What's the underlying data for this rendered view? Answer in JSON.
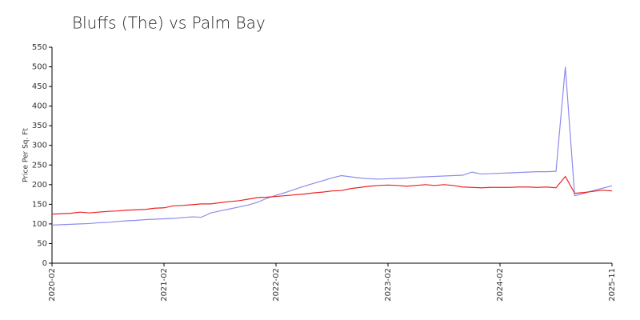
{
  "chart_data": {
    "type": "line",
    "title": "Bluffs (The) vs Palm Bay",
    "y_label": "Price Per Sq. Ft",
    "categories": [
      "2020-02",
      null,
      null,
      null,
      null,
      null,
      null,
      null,
      null,
      null,
      null,
      null,
      "2021-02",
      null,
      null,
      null,
      null,
      null,
      null,
      null,
      null,
      null,
      null,
      null,
      "2022-02",
      null,
      null,
      null,
      null,
      null,
      null,
      null,
      null,
      null,
      null,
      null,
      "2023-02",
      null,
      null,
      null,
      null,
      null,
      null,
      null,
      null,
      null,
      null,
      null,
      "2024-02",
      null,
      null,
      null,
      null,
      null,
      null,
      null,
      null,
      null,
      null,
      null,
      "2025-11"
    ],
    "series": [
      {
        "color": "#8c8cec",
        "values": [
          97,
          98,
          99,
          100,
          101,
          103,
          104,
          106,
          108,
          109,
          111,
          112,
          113,
          114,
          116,
          118,
          117,
          128,
          133,
          138,
          143,
          148,
          155,
          165,
          173,
          180,
          188,
          196,
          203,
          210,
          217,
          223,
          220,
          217,
          215,
          214,
          215,
          216,
          217,
          219,
          220,
          221,
          222,
          223,
          224,
          232,
          227,
          228,
          229,
          230,
          231,
          232,
          233,
          233,
          234,
          500,
          172,
          178,
          185,
          191,
          197
        ]
      },
      {
        "color": "#ee2222",
        "values": [
          125,
          126,
          127,
          130,
          128,
          130,
          132,
          133,
          135,
          136,
          137,
          140,
          141,
          146,
          147,
          149,
          151,
          151,
          154,
          157,
          159,
          163,
          167,
          168,
          170,
          172,
          174,
          176,
          179,
          181,
          184,
          185,
          190,
          193,
          196,
          198,
          199,
          198,
          196,
          198,
          200,
          198,
          200,
          198,
          194,
          193,
          192,
          193,
          193,
          193,
          194,
          194,
          193,
          194,
          192,
          221,
          178,
          180,
          183,
          186,
          184
        ]
      }
    ],
    "ylim": [
      0,
      550
    ],
    "yticks": [
      0,
      50,
      100,
      150,
      200,
      250,
      300,
      350,
      400,
      450,
      500,
      550
    ],
    "grid": false
  }
}
